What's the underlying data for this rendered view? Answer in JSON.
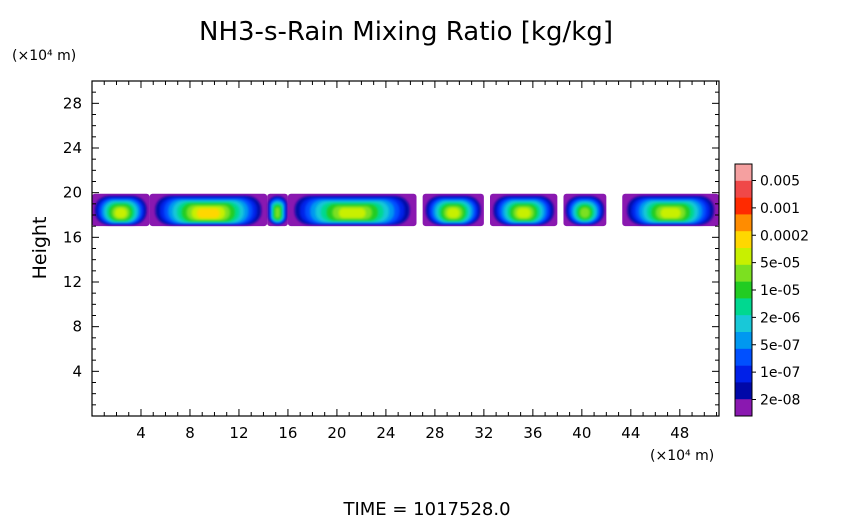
{
  "chart_data": {
    "type": "heatmap",
    "title": "NH3-s-Rain Mixing Ratio [kg/kg]",
    "ylabel": "Height",
    "xlabel": "",
    "x_unit": "(×10⁴ m)",
    "y_unit": "(×10⁴ m)",
    "xlim": [
      0,
      51.2
    ],
    "ylim": [
      0,
      30
    ],
    "x_ticks": [
      4,
      8,
      12,
      16,
      20,
      24,
      28,
      32,
      36,
      40,
      44,
      48
    ],
    "y_ticks": [
      4,
      8,
      12,
      16,
      20,
      24,
      28
    ],
    "x_tick_labels": [
      "4",
      "8",
      "12",
      "16",
      "20",
      "24",
      "28",
      "32",
      "36",
      "40",
      "44",
      "48"
    ],
    "y_tick_labels": [
      "4",
      "8",
      "12",
      "16",
      "20",
      "24",
      "28"
    ],
    "colorbar": {
      "labels": [
        "0.005",
        "0.001",
        "0.0002",
        "5e-05",
        "1e-05",
        "2e-06",
        "5e-07",
        "1e-07",
        "2e-08"
      ],
      "colors_top_to_bottom": [
        "#f5a0a0",
        "#f04848",
        "#ff2a00",
        "#ff8c00",
        "#ffd700",
        "#c8f000",
        "#7ce020",
        "#22cc22",
        "#00d890",
        "#18c8d8",
        "#0098f0",
        "#0050ff",
        "#0020e8",
        "#0008a8",
        "#8a18b0"
      ]
    },
    "cloud_band": {
      "height_bottom": 17.2,
      "height_top": 20.0,
      "gaps_x": [
        [
          42.0,
          43.3
        ]
      ],
      "cells": [
        {
          "x_start": 0.0,
          "x_end": 4.7,
          "peak": 4
        },
        {
          "x_start": 4.7,
          "x_end": 14.3,
          "peak": 5
        },
        {
          "x_start": 14.3,
          "x_end": 16.0,
          "peak": 3
        },
        {
          "x_start": 16.0,
          "x_end": 26.5,
          "peak": 4
        },
        {
          "x_start": 27.0,
          "x_end": 32.0,
          "peak": 4
        },
        {
          "x_start": 32.5,
          "x_end": 38.0,
          "peak": 4
        },
        {
          "x_start": 38.5,
          "x_end": 42.0,
          "peak": 3
        },
        {
          "x_start": 43.3,
          "x_end": 51.2,
          "peak": 4
        }
      ]
    },
    "footer": "TIME =  1017528.0"
  }
}
